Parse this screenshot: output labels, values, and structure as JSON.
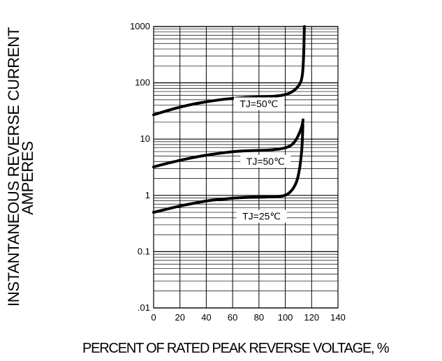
{
  "chart_data": {
    "type": "line",
    "xlabel": "PERCENT OF RATED PEAK REVERSE VOLTAGE, %",
    "ylabel_line1": "INSTANTANEOUS REVERSE CURRENT",
    "ylabel_line2": "AMPERES",
    "y_scale": "log",
    "xlim": [
      0,
      140
    ],
    "ylim": [
      0.01,
      1000
    ],
    "x_ticks": [
      0,
      20,
      40,
      60,
      80,
      100,
      120,
      140
    ],
    "y_ticks": [
      {
        "value": 0.01,
        "label": ".01"
      },
      {
        "value": 0.1,
        "label": "0.1"
      },
      {
        "value": 1,
        "label": "1"
      },
      {
        "value": 10,
        "label": "10"
      },
      {
        "value": 100,
        "label": "100"
      },
      {
        "value": 1000,
        "label": "1000"
      }
    ],
    "grid": true,
    "series": [
      {
        "label": "TJ=50℃",
        "label_at": {
          "x": 80,
          "y": 38
        },
        "points": [
          [
            0,
            27
          ],
          [
            10,
            32
          ],
          [
            20,
            37
          ],
          [
            30,
            42
          ],
          [
            40,
            46
          ],
          [
            50,
            50
          ],
          [
            60,
            53
          ],
          [
            70,
            55
          ],
          [
            80,
            56
          ],
          [
            90,
            57
          ],
          [
            100,
            61
          ],
          [
            105,
            68
          ],
          [
            110,
            85
          ],
          [
            113,
            120
          ],
          [
            114,
            300
          ],
          [
            114.5,
            1000
          ]
        ]
      },
      {
        "label": "TJ=50℃",
        "label_at": {
          "x": 85,
          "y": 3.6
        },
        "points": [
          [
            0,
            3.2
          ],
          [
            10,
            3.7
          ],
          [
            20,
            4.2
          ],
          [
            30,
            4.7
          ],
          [
            40,
            5.2
          ],
          [
            50,
            5.6
          ],
          [
            60,
            6.0
          ],
          [
            70,
            6.2
          ],
          [
            80,
            6.3
          ],
          [
            90,
            6.4
          ],
          [
            100,
            6.9
          ],
          [
            105,
            7.8
          ],
          [
            108,
            9.5
          ],
          [
            111,
            13
          ],
          [
            113,
            18
          ],
          [
            113.5,
            22
          ]
        ]
      },
      {
        "label": "TJ=25℃",
        "label_at": {
          "x": 82,
          "y": 0.38
        },
        "points": [
          [
            0,
            0.5
          ],
          [
            10,
            0.57
          ],
          [
            20,
            0.65
          ],
          [
            30,
            0.72
          ],
          [
            40,
            0.8
          ],
          [
            50,
            0.85
          ],
          [
            60,
            0.89
          ],
          [
            70,
            0.92
          ],
          [
            80,
            0.93
          ],
          [
            90,
            0.94
          ],
          [
            98,
            0.97
          ],
          [
            102,
            1.05
          ],
          [
            106,
            1.3
          ],
          [
            109,
            1.8
          ],
          [
            111,
            3
          ],
          [
            112.5,
            6
          ],
          [
            113,
            10
          ],
          [
            113.3,
            18
          ]
        ]
      }
    ]
  }
}
